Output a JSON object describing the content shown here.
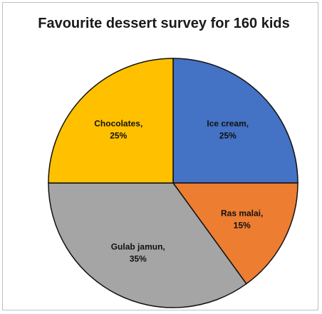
{
  "chart_data": {
    "type": "pie",
    "title": "Favourite dessert survey for 160 kids",
    "categories": [
      "Ice cream",
      "Ras malai",
      "Gulab jamun",
      "Chocolates"
    ],
    "values": [
      25,
      15,
      35,
      25
    ],
    "labels": [
      {
        "name": "Ice cream,",
        "pct": "25%"
      },
      {
        "name": "Ras malai,",
        "pct": "15%"
      },
      {
        "name": "Gulab jamun,",
        "pct": "35%"
      },
      {
        "name": "Chocolates,",
        "pct": "25%"
      }
    ],
    "colors": [
      "#4472c4",
      "#ed7d31",
      "#a5a5a5",
      "#ffc000"
    ],
    "legend": "none"
  }
}
